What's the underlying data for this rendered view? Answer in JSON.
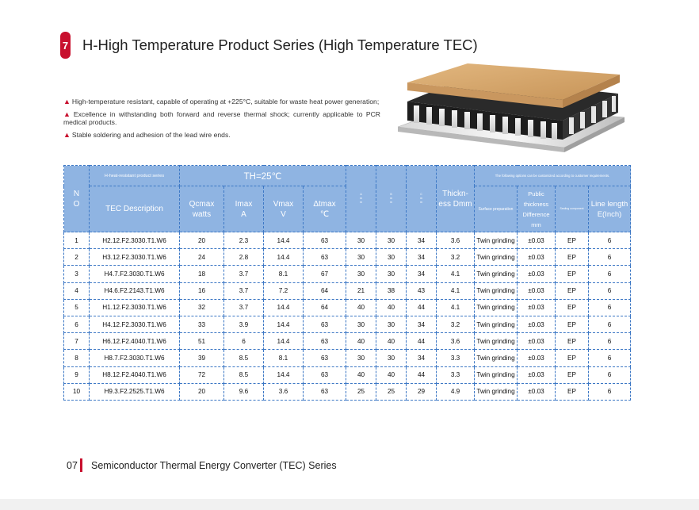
{
  "section_number": "7",
  "title": "H-High Temperature Product Series (High Temperature TEC)",
  "bullets": [
    "High-temperature resistant, capable of operating at +225°C, suitable for waste heat power generation;",
    "Excellence in withstanding both forward and reverse thermal shock; currently applicable to PCR medical products.",
    "Stable soldering and adhesion of the lead wire ends."
  ],
  "bullet_marker": "▲",
  "table": {
    "no_header": "N\nO",
    "series_header": "H-heat-resistant product series",
    "th_header": "TH=25℃",
    "options_header": "The following options can be customized according to customer requirements.",
    "tec_header": "TEC Description",
    "qcmax_header": "Qcmax\nwatts",
    "imax_header": "Imax\nA",
    "vmax_header": "Vmax\nV",
    "dtmax_header": "Δtmax\n℃",
    "a_header": "A\nm\nm",
    "b_header": "B\nm\nm",
    "c_header": "C\nm\nm",
    "thickness_header": "Thickn-\ness Dmm",
    "surface_header": "Surface preparation",
    "parallel_header": "Public thickness\nDifference\nmm",
    "sealing_header": "Sealing component",
    "line_header": "Line length\nE(Inch)",
    "rows": [
      [
        "1",
        "H2.12.F2.3030.T1.W6",
        "20",
        "2.3",
        "14.4",
        "63",
        "30",
        "30",
        "34",
        "3.6",
        "Twin grinding",
        "±0.03",
        "EP",
        "6"
      ],
      [
        "2",
        "H3.12.F2.3030.T1.W6",
        "24",
        "2.8",
        "14.4",
        "63",
        "30",
        "30",
        "34",
        "3.2",
        "Twin grinding",
        "±0.03",
        "EP",
        "6"
      ],
      [
        "3",
        "H4.7.F2.3030.T1.W6",
        "18",
        "3.7",
        "8.1",
        "67",
        "30",
        "30",
        "34",
        "4.1",
        "Twin grinding",
        "±0.03",
        "EP",
        "6"
      ],
      [
        "4",
        "H4.6.F2.2143.T1.W6",
        "16",
        "3.7",
        "7.2",
        "64",
        "21",
        "38",
        "43",
        "4.1",
        "Twin grinding",
        "±0.03",
        "EP",
        "6"
      ],
      [
        "5",
        "H1.12.F2.3030.T1.W6",
        "32",
        "3.7",
        "14.4",
        "64",
        "40",
        "40",
        "44",
        "4.1",
        "Twin grinding",
        "±0.03",
        "EP",
        "6"
      ],
      [
        "6",
        "H4.12.F2.3030.T1.W6",
        "33",
        "3.9",
        "14.4",
        "63",
        "30",
        "30",
        "34",
        "3.2",
        "Twin grinding",
        "±0.03",
        "EP",
        "6"
      ],
      [
        "7",
        "H6.12.F2.4040.T1.W6",
        "51",
        "6",
        "14.4",
        "63",
        "40",
        "40",
        "44",
        "3.6",
        "Twin grinding",
        "±0.03",
        "EP",
        "6"
      ],
      [
        "8",
        "H8.7.F2.3030.T1.W6",
        "39",
        "8.5",
        "8.1",
        "63",
        "30",
        "30",
        "34",
        "3.3",
        "Twin grinding",
        "±0.03",
        "EP",
        "6"
      ],
      [
        "9",
        "H8.12.F2.4040.T1.W6",
        "72",
        "8.5",
        "14.4",
        "63",
        "40",
        "40",
        "44",
        "3.3",
        "Twin grinding",
        "±0.03",
        "EP",
        "6"
      ],
      [
        "10",
        "H9.3.F2.2525.T1.W6",
        "20",
        "9.6",
        "3.6",
        "63",
        "25",
        "25",
        "29",
        "4.9",
        "Twin grinding",
        "±0.03",
        "EP",
        "6"
      ]
    ]
  },
  "footer": {
    "page_number": "07",
    "text": "Semiconductor Thermal Energy Converter (TEC) Series"
  },
  "colors": {
    "accent": "#c8102e",
    "table_header": "#8fb4e2",
    "table_border": "#3d78c5"
  }
}
